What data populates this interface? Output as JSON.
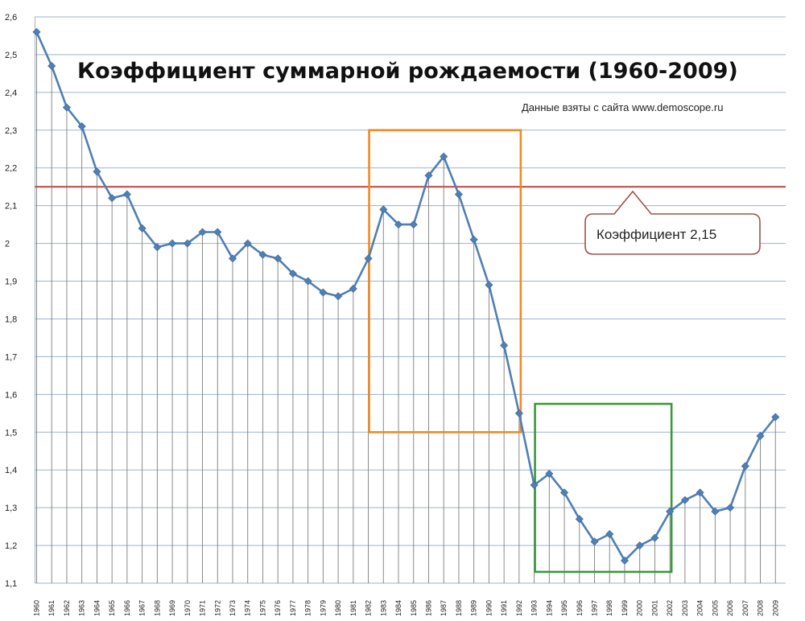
{
  "chart_data": {
    "type": "line",
    "title": "Коэффициент суммарной рождаемости (1960-2009)",
    "source_note": "Данные взяты с сайта www.demoscope.ru",
    "xlabel": "",
    "ylabel": "",
    "ylim": [
      1.1,
      2.6
    ],
    "yticks": [
      "1,1",
      "1,2",
      "1,3",
      "1,4",
      "1,5",
      "1,6",
      "1,7",
      "1,8",
      "1,9",
      "2",
      "2,1",
      "2,2",
      "2,3",
      "2,4",
      "2,5",
      "2,6"
    ],
    "x": [
      1960,
      1961,
      1962,
      1963,
      1964,
      1965,
      1966,
      1967,
      1968,
      1969,
      1970,
      1971,
      1972,
      1973,
      1974,
      1975,
      1976,
      1977,
      1978,
      1979,
      1980,
      1981,
      1982,
      1983,
      1984,
      1985,
      1986,
      1987,
      1988,
      1989,
      1990,
      1991,
      1992,
      1993,
      1994,
      1995,
      1996,
      1997,
      1998,
      1999,
      2000,
      2001,
      2002,
      2003,
      2004,
      2005,
      2006,
      2007,
      2008,
      2009
    ],
    "series": [
      {
        "name": "",
        "color": "#4f7fb4",
        "values": [
          2.56,
          2.47,
          2.36,
          2.31,
          2.19,
          2.12,
          2.13,
          2.04,
          1.99,
          2.0,
          2.0,
          2.03,
          2.03,
          1.96,
          2.0,
          1.97,
          1.96,
          1.92,
          1.9,
          1.87,
          1.86,
          1.88,
          1.96,
          2.09,
          2.05,
          2.05,
          2.18,
          2.23,
          2.13,
          2.01,
          1.89,
          1.73,
          1.55,
          1.36,
          1.39,
          1.34,
          1.27,
          1.21,
          1.23,
          1.16,
          1.2,
          1.22,
          1.29,
          1.32,
          1.34,
          1.29,
          1.3,
          1.41,
          1.49,
          1.54
        ]
      }
    ],
    "reference_line": {
      "value": 2.15,
      "color": "#c0504d"
    },
    "callout": {
      "label": "Коэффициент  2,15",
      "color": "#a0504d"
    },
    "highlight_boxes": [
      {
        "from_year": 1982,
        "to_year": 1992,
        "y_min": 1.5,
        "y_max": 2.3,
        "color": "#f08a24"
      },
      {
        "from_year": 1993,
        "to_year": 2002,
        "y_min": 1.13,
        "y_max": 1.575,
        "color": "#3a9a3a"
      }
    ],
    "grid": true,
    "legend": "none"
  }
}
